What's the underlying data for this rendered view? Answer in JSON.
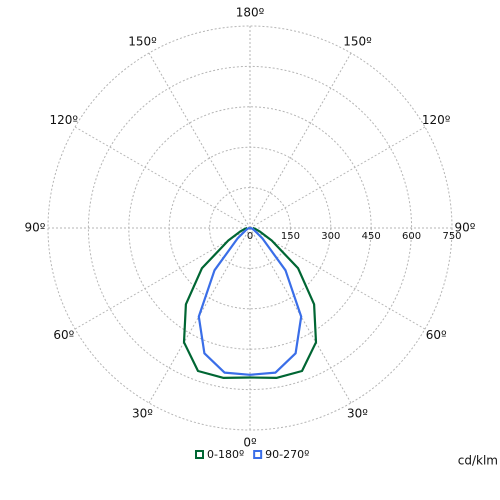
{
  "chart_data": {
    "type": "polar",
    "unit_label": "cd/klm",
    "rlim": [
      0,
      750
    ],
    "rticks": [
      0,
      150,
      300,
      450,
      600,
      750
    ],
    "angle_ticks": [
      {
        "value": -150,
        "label": "150º"
      },
      {
        "value": -120,
        "label": "120º"
      },
      {
        "value": -90,
        "label": "90º"
      },
      {
        "value": -60,
        "label": "60º"
      },
      {
        "value": -30,
        "label": "30º"
      },
      {
        "value": 0,
        "label": "0º"
      },
      {
        "value": 30,
        "label": "30º"
      },
      {
        "value": 60,
        "label": "60º"
      },
      {
        "value": 90,
        "label": "90º"
      },
      {
        "value": 120,
        "label": "120º"
      },
      {
        "value": 150,
        "label": "150º"
      },
      {
        "value": 180,
        "label": "180º"
      }
    ],
    "grid": true,
    "x": [
      -90,
      -80,
      -70,
      -60,
      -50,
      -40,
      -30,
      -20,
      -10,
      0,
      10,
      20,
      30,
      40,
      50,
      60,
      70,
      80,
      90
    ],
    "series": [
      {
        "name": "0-180º",
        "color": "#006633",
        "values": [
          10,
          20,
          40,
          93,
          233,
          370,
          490,
          565,
          565,
          555,
          565,
          565,
          490,
          370,
          233,
          93,
          40,
          20,
          10
        ]
      },
      {
        "name": "90-270º",
        "color": "#3a6ee8",
        "values": [
          0,
          5,
          10,
          20,
          60,
          205,
          380,
          495,
          545,
          545,
          545,
          495,
          380,
          205,
          60,
          20,
          10,
          5,
          0
        ]
      }
    ]
  }
}
